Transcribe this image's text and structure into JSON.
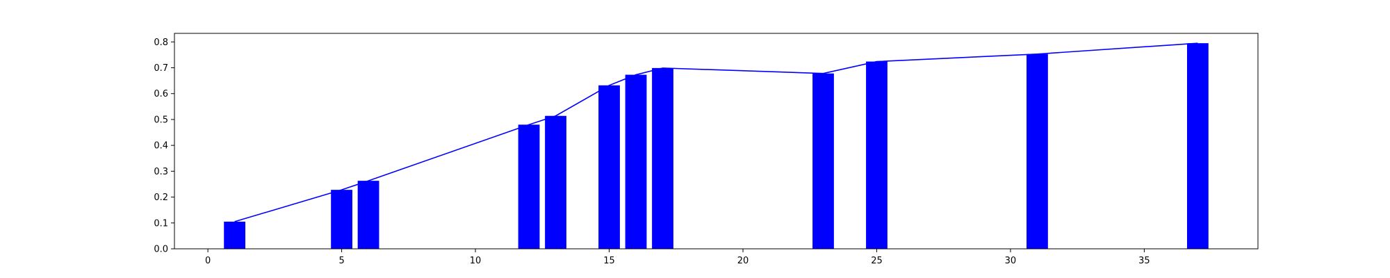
{
  "chart_data": {
    "type": "bar",
    "title": "",
    "xlabel": "",
    "ylabel": "",
    "xlim": [
      -1.25,
      39.25
    ],
    "ylim": [
      0,
      0.833
    ],
    "xticks": [
      0,
      5,
      10,
      15,
      20,
      25,
      30,
      35
    ],
    "yticks": [
      0.0,
      0.1,
      0.2,
      0.3,
      0.4,
      0.5,
      0.6,
      0.7,
      0.8
    ],
    "grid": false,
    "legend": "none",
    "bar_color": "#0000ff",
    "line_color": "#0000ff",
    "x": [
      1,
      5,
      6,
      12,
      13,
      15,
      16,
      17,
      23,
      25,
      31,
      37
    ],
    "bar_values": [
      0.105,
      0.228,
      0.263,
      0.48,
      0.514,
      0.632,
      0.673,
      0.699,
      0.678,
      0.724,
      0.753,
      0.795
    ],
    "line_values": [
      0.105,
      0.228,
      0.263,
      0.48,
      0.514,
      0.632,
      0.673,
      0.699,
      0.678,
      0.724,
      0.753,
      0.795
    ]
  }
}
